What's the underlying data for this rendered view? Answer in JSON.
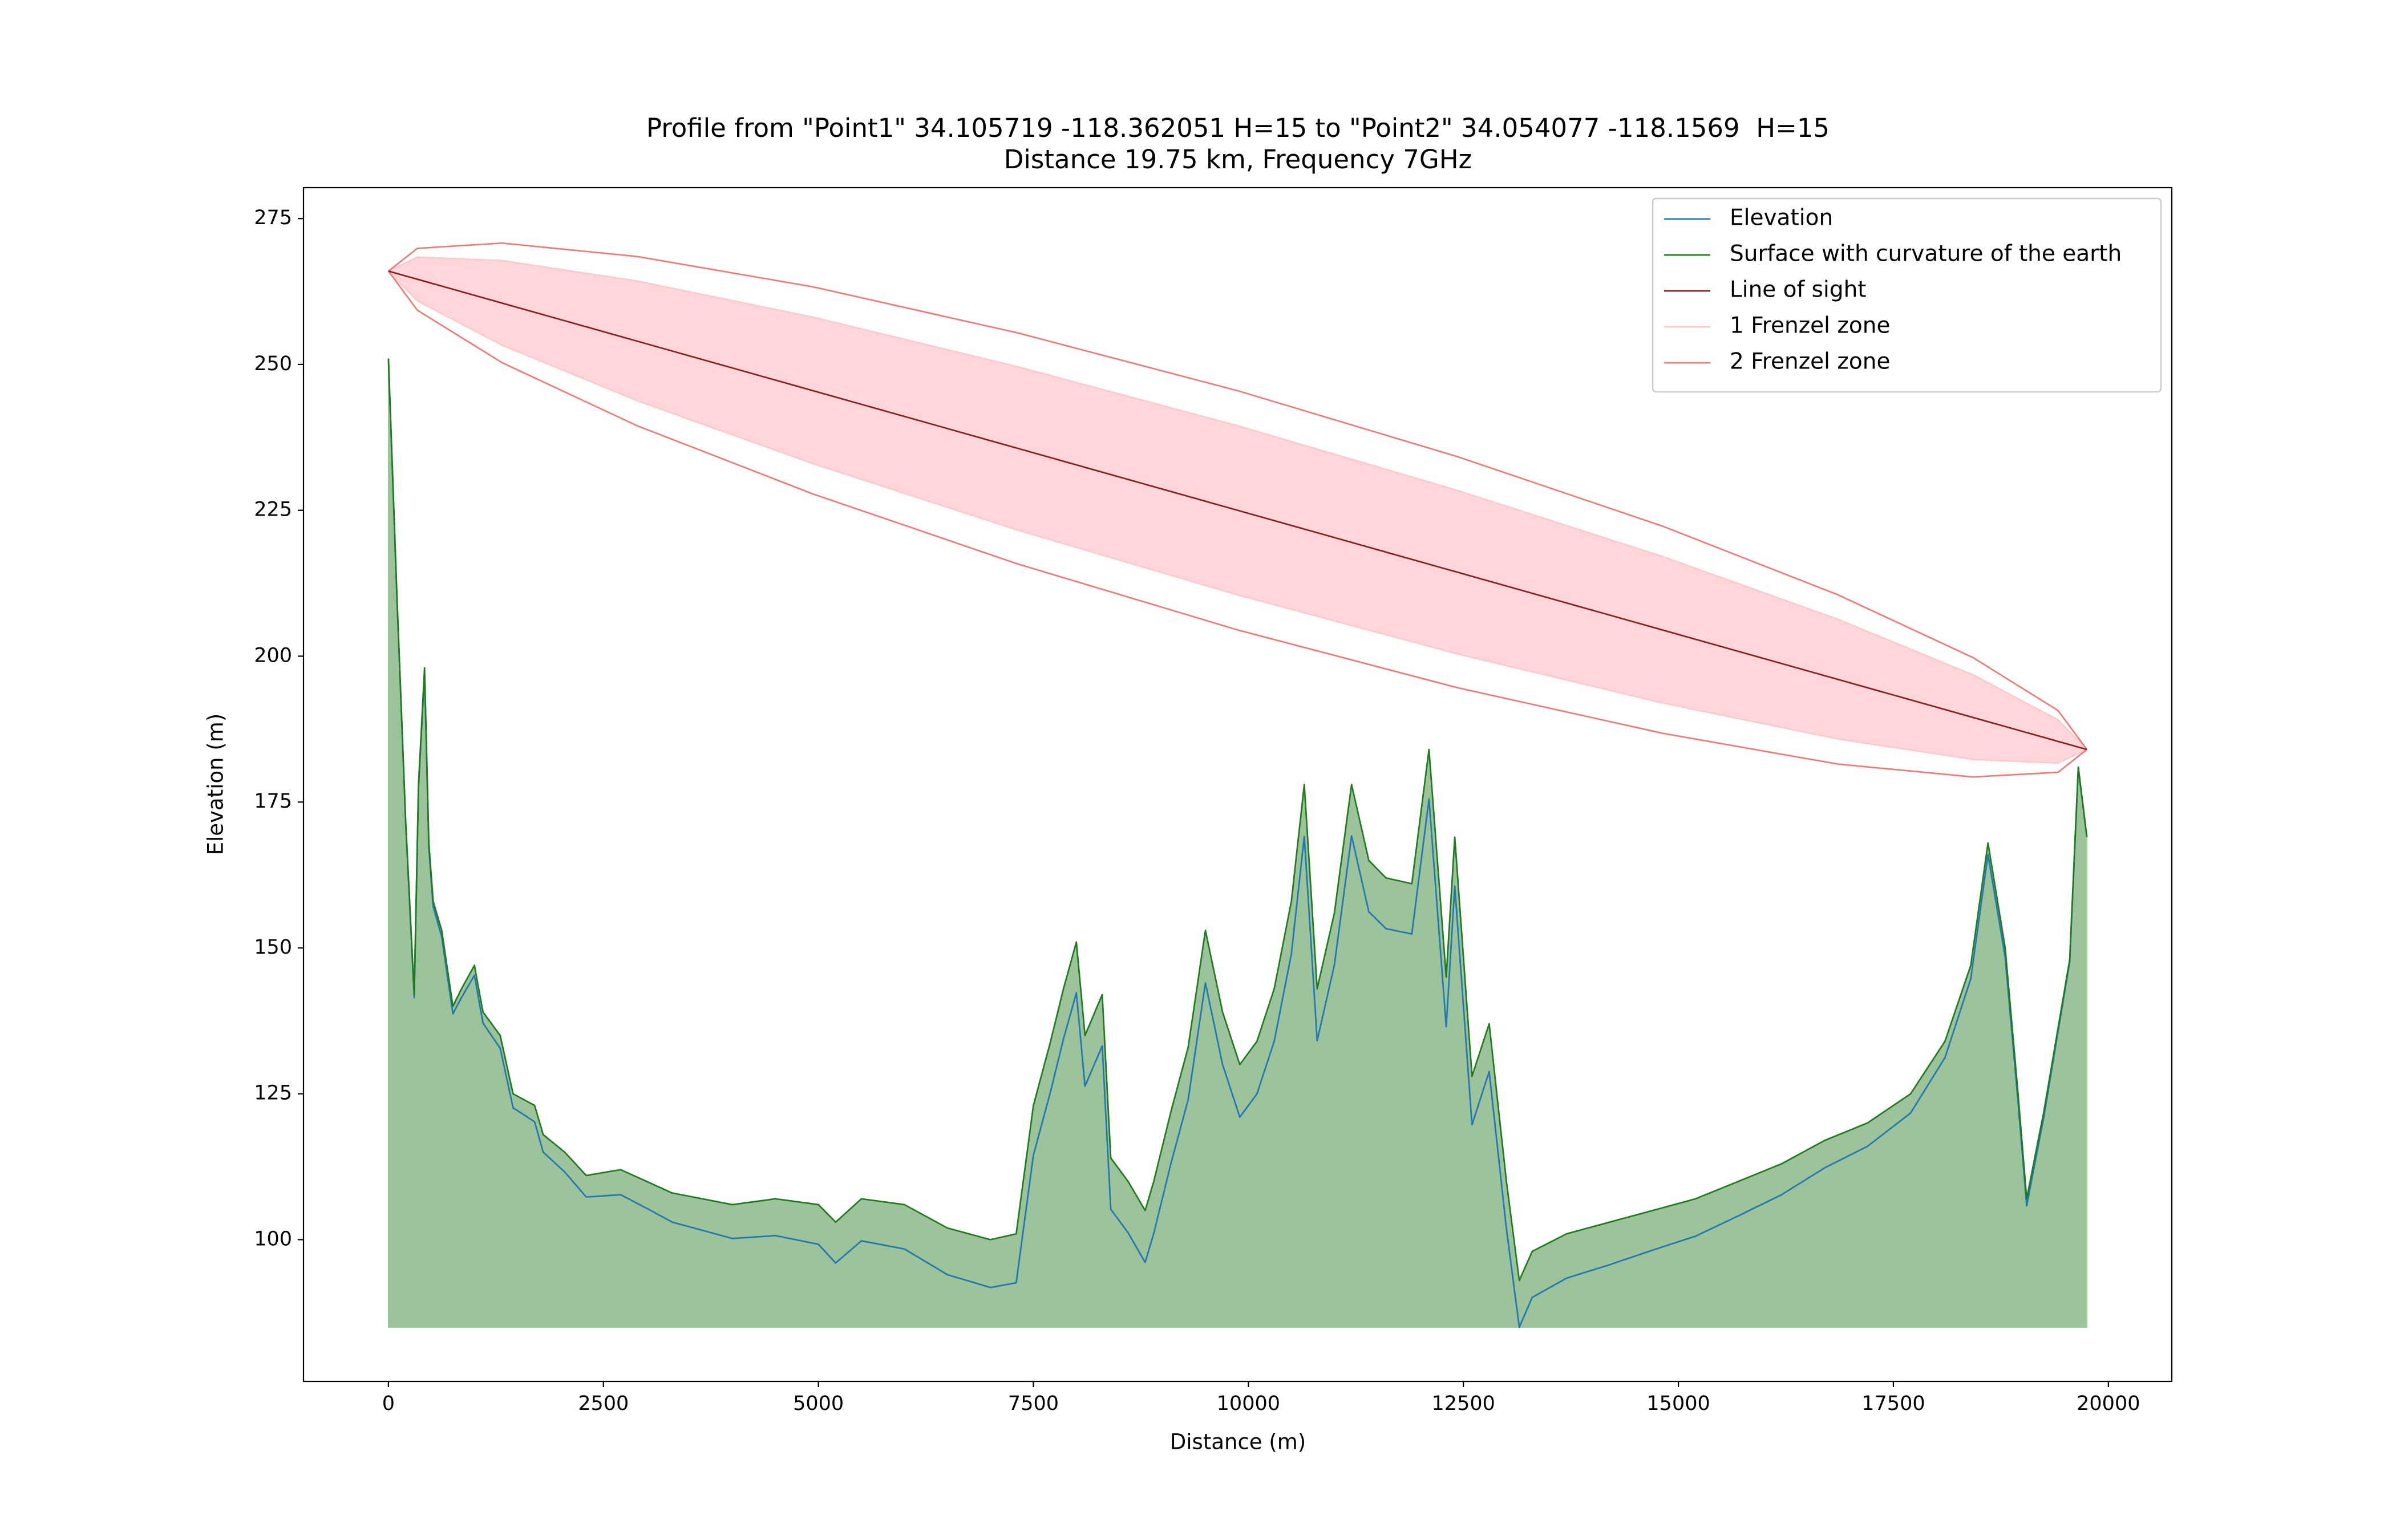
{
  "chart_data": {
    "type": "line",
    "title": "Profile from \"Point1\" 34.105719 -118.362051 H=15 to \"Point2\" 34.054077 -118.1569  H=15",
    "subtitle": "Distance 19.75 km, Frequency 7GHz",
    "x_label": "Distance (m)",
    "y_label": "Elevation (m)",
    "xlim": [
      -987.5,
      20737.5
    ],
    "ylim": [
      75.7,
      280.3
    ],
    "xticks": [
      0,
      2500,
      5000,
      7500,
      10000,
      12500,
      15000,
      17500,
      20000
    ],
    "yticks": [
      100,
      125,
      150,
      175,
      200,
      225,
      250,
      275
    ],
    "grid": false,
    "legend_position": "upper right",
    "x": [
      0,
      100,
      200,
      300,
      350,
      420,
      470,
      520,
      620,
      750,
      850,
      1000,
      1100,
      1300,
      1450,
      1700,
      1800,
      2050,
      2300,
      2700,
      3000,
      3300,
      4000,
      4500,
      5000,
      5200,
      5500,
      6000,
      6500,
      7000,
      7300,
      7500,
      7700,
      7850,
      8000,
      8100,
      8300,
      8400,
      8600,
      8800,
      8900,
      9100,
      9300,
      9500,
      9700,
      9900,
      10100,
      10300,
      10500,
      10650,
      10800,
      11000,
      11200,
      11400,
      11600,
      11900,
      12100,
      12300,
      12400,
      12600,
      12800,
      13000,
      13150,
      13300,
      13700,
      14200,
      14700,
      15200,
      15700,
      16200,
      16700,
      17200,
      17700,
      18100,
      18400,
      18600,
      18800,
      18950,
      19050,
      19250,
      19400,
      19550,
      19650,
      19750
    ],
    "series": [
      {
        "name": "Elevation",
        "color": "#1f77b4",
        "values": [
          251,
          209.8,
          171.6,
          141.5,
          177.4,
          197.3,
          167.2,
          157.1,
          151.9,
          138.7,
          141.5,
          145.3,
          137.1,
          132.8,
          122.6,
          120.2,
          115.0,
          111.6,
          107.3,
          107.7,
          105.4,
          103.0,
          100.2,
          100.7,
          99.2,
          96.0,
          99.8,
          98.4,
          94.0,
          91.8,
          92.6,
          114.5,
          125.4,
          134.4,
          142.3,
          126.3,
          133.2,
          105.2,
          101.2,
          96.1,
          101.1,
          113.1,
          124.0,
          144.0,
          130.0,
          121.0,
          125.0,
          134.0,
          149.0,
          169.1,
          134.1,
          147.1,
          169.2,
          156.2,
          153.3,
          152.4,
          175.5,
          136.5,
          160.6,
          119.7,
          128.8,
          101.9,
          85.0,
          90.1,
          93.4,
          95.7,
          98.2,
          100.6,
          104.1,
          107.7,
          112.3,
          116.0,
          121.7,
          131.2,
          144.7,
          166.0,
          148.4,
          123.6,
          105.8,
          121.1,
          134.4,
          147.6,
          180.8,
          169
        ]
      },
      {
        "name": "Surface with curvature of the earth",
        "color": "#1e7b1e",
        "fill": "#9cc39a",
        "values": [
          251,
          210,
          172,
          142,
          178,
          198,
          168,
          158,
          153,
          140,
          143,
          147,
          139,
          135,
          125,
          123,
          118,
          115,
          111,
          112,
          110,
          108,
          106,
          107,
          106,
          103,
          107,
          106,
          102,
          100,
          101,
          123,
          134,
          143,
          151,
          135,
          142,
          114,
          110,
          105,
          110,
          122,
          133,
          153,
          139,
          130,
          134,
          143,
          158,
          178,
          143,
          156,
          178,
          165,
          162,
          161,
          184,
          145,
          169,
          128,
          137,
          110,
          93,
          98,
          101,
          103,
          105,
          107,
          110,
          113,
          117,
          120,
          125,
          134,
          147,
          168,
          150,
          125,
          107,
          122,
          135,
          148,
          181,
          169
        ]
      }
    ],
    "line_of_sight": {
      "name": "Line of sight",
      "color": "#8b2020",
      "x": [
        0,
        19750
      ],
      "values": [
        266,
        184
      ]
    },
    "zones": [
      {
        "name": "1 Frenzel zone",
        "color": "#ffc9cc",
        "fill": "#ffd7da",
        "x": [
          0,
          336,
          1323,
          2892,
          4938,
          7319,
          9875,
          12431,
          14813,
          16858,
          18427,
          19414,
          19750
        ],
        "upper": [
          266,
          268.4,
          267.8,
          264.3,
          258.1,
          249.6,
          239.5,
          228.4,
          217.1,
          206.3,
          196.8,
          189.1,
          184
        ],
        "lower": [
          266,
          260.9,
          253.3,
          243.8,
          233.0,
          221.6,
          210.5,
          200.4,
          192.0,
          185.8,
          182.3,
          181.7,
          184
        ]
      },
      {
        "name": "2 Frenzel zone",
        "color": "#ef7a7a",
        "x": [
          0,
          336,
          1323,
          2892,
          4938,
          7319,
          9875,
          12431,
          14813,
          16858,
          18427,
          19414,
          19750
        ],
        "upper": [
          266,
          269.9,
          270.8,
          268.5,
          263.3,
          255.4,
          245.5,
          234.2,
          222.3,
          210.5,
          199.75,
          190.7,
          184
        ],
        "lower": [
          266,
          259.3,
          250.3,
          239.5,
          227.8,
          215.8,
          204.5,
          194.6,
          186.8,
          181.5,
          179.3,
          180.1,
          184
        ]
      }
    ]
  }
}
